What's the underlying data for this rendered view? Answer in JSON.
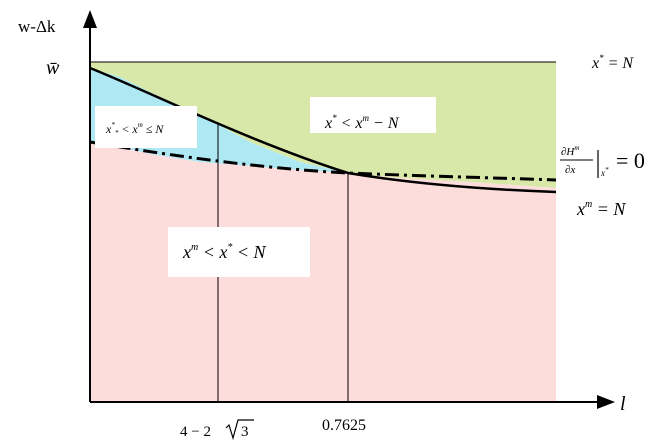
{
  "axes": {
    "y_label": "w-Δk",
    "x_label": "l",
    "y_tick_label": "w̄"
  },
  "x_ticks": [
    {
      "label_main": "4 − 2",
      "label_sqrt": "3"
    },
    {
      "label": "0.7625"
    }
  ],
  "regions": [
    {
      "label": "x* < x^m − N",
      "color": "#d8e8a8"
    },
    {
      "label": "x*_* < x^m ≤ N",
      "color": "#aee8f2"
    },
    {
      "label": "x^m < x* < N",
      "color": "#fddcdc"
    }
  ],
  "right_labels": {
    "top": "x* = N",
    "middle": "∂H^m/∂x |x* = 0",
    "bottom": "x^m = N"
  },
  "colors": {
    "green_region": "#d8e8a8",
    "blue_region": "#aee8f2",
    "pink_region": "#fddcdc",
    "curves": "#000000"
  }
}
